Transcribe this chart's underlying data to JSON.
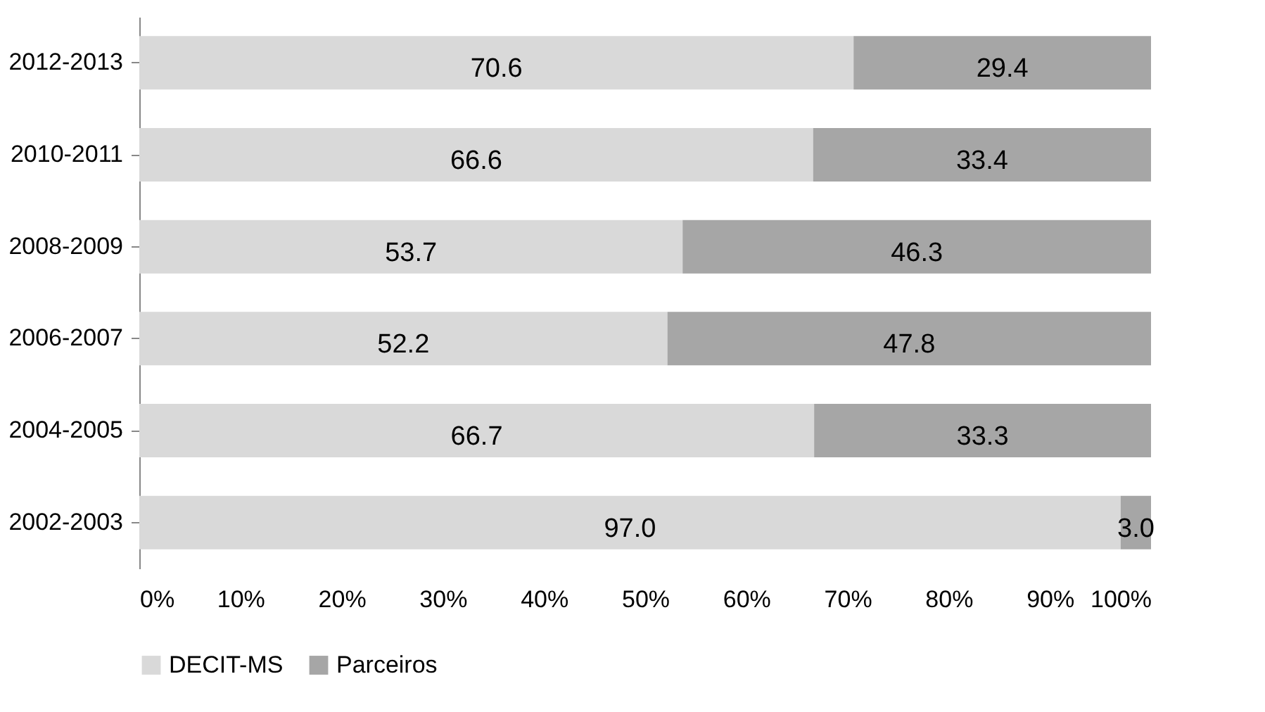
{
  "chart_data": {
    "type": "bar",
    "orientation": "horizontal",
    "stacked": true,
    "categories": [
      "2012-2013",
      "2010-2011",
      "2008-2009",
      "2006-2007",
      "2004-2005",
      "2002-2003"
    ],
    "series": [
      {
        "name": "DECIT-MS",
        "color": "#d9d9d9",
        "values": [
          70.6,
          66.6,
          53.7,
          52.2,
          66.7,
          97.0
        ],
        "value_labels": [
          "70.6",
          "66.6",
          "53.7",
          "52.2",
          "66.7",
          "97.0"
        ]
      },
      {
        "name": "Parceiros",
        "color": "#a6a6a6",
        "values": [
          29.4,
          33.4,
          46.3,
          47.8,
          33.3,
          3.0
        ],
        "value_labels": [
          "29.4",
          "33.4",
          "46.3",
          "47.8",
          "33.3",
          "3.0"
        ]
      }
    ],
    "xlim": [
      0,
      100
    ],
    "xticks": [
      {
        "value": 0,
        "label": "0%"
      },
      {
        "value": 10,
        "label": "10%"
      },
      {
        "value": 20,
        "label": "20%"
      },
      {
        "value": 30,
        "label": "30%"
      },
      {
        "value": 40,
        "label": "40%"
      },
      {
        "value": 50,
        "label": "50%"
      },
      {
        "value": 60,
        "label": "60%"
      },
      {
        "value": 70,
        "label": "70%"
      },
      {
        "value": 80,
        "label": "80%"
      },
      {
        "value": 90,
        "label": "90%"
      },
      {
        "value": 100,
        "label": "100%"
      }
    ],
    "grid": false,
    "legend": "bottom"
  }
}
